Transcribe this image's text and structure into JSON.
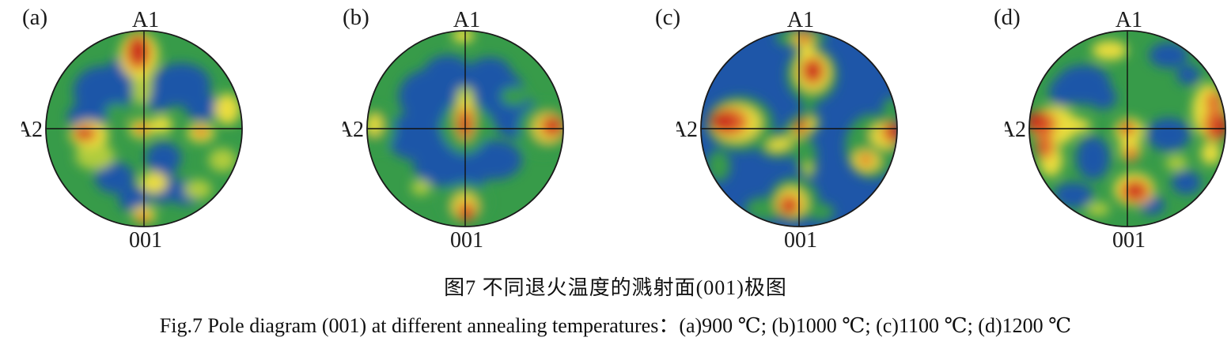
{
  "figure": {
    "caption_zh": "图7  不同退火温度的溅射面(001)极图",
    "caption_en": "Fig.7  Pole diagram (001) at different annealing temperatures：(a)900 ℃; (b)1000 ℃; (c)1100 ℃; (d)1200 ℃",
    "axis_labels": {
      "top": "A1",
      "left": "A2",
      "bottom": "001"
    },
    "colors": {
      "blue": "#1e56a8",
      "green": "#379b49",
      "yellowgreen": "#b0cc3c",
      "yellow": "#eadd3d",
      "orange": "#e0662a",
      "red": "#c92d1c"
    },
    "panels": [
      {
        "letter": "(a)",
        "temperature": "900 ℃",
        "base": "green",
        "blobs": [
          [
            -0.42,
            -0.38,
            0.3,
            0.26,
            "blue"
          ],
          [
            -0.15,
            -0.58,
            0.22,
            0.18,
            "blue"
          ],
          [
            -0.58,
            -0.12,
            0.2,
            0.15,
            "blue"
          ],
          [
            0.38,
            -0.45,
            0.3,
            0.22,
            "blue"
          ],
          [
            0.15,
            -0.32,
            0.16,
            0.14,
            "blue"
          ],
          [
            0.6,
            -0.22,
            0.18,
            0.14,
            "blue"
          ],
          [
            0.2,
            0.3,
            0.18,
            0.16,
            "blue"
          ],
          [
            0.18,
            0.55,
            0.14,
            0.22,
            "blue"
          ],
          [
            0.42,
            0.65,
            0.18,
            0.13,
            "blue"
          ],
          [
            -0.3,
            0.5,
            0.2,
            0.16,
            "blue"
          ],
          [
            -0.1,
            0.72,
            0.16,
            0.13,
            "blue"
          ],
          [
            -0.28,
            -0.17,
            0.12,
            0.09,
            "green"
          ],
          [
            -0.5,
            0.28,
            0.2,
            0.14,
            "yellowgreen"
          ],
          [
            0.8,
            0.32,
            0.14,
            0.12,
            "yellowgreen"
          ],
          [
            0.55,
            0.62,
            0.14,
            0.1,
            "yellowgreen"
          ],
          [
            -0.02,
            -0.45,
            0.1,
            0.22,
            "yellowgreen"
          ],
          [
            -0.05,
            -0.75,
            0.2,
            0.24,
            "yellow"
          ],
          [
            -0.56,
            0.06,
            0.2,
            0.14,
            "yellow"
          ],
          [
            0.18,
            -0.04,
            0.11,
            0.09,
            "yellow"
          ],
          [
            0.85,
            -0.2,
            0.13,
            0.16,
            "yellow"
          ],
          [
            0.58,
            0.04,
            0.14,
            0.1,
            "yellow"
          ],
          [
            0.1,
            0.55,
            0.14,
            0.11,
            "yellow"
          ],
          [
            -0.02,
            0.0,
            0.13,
            0.1,
            "yellow"
          ],
          [
            0.0,
            0.88,
            0.12,
            0.09,
            "yellow"
          ],
          [
            -0.06,
            -0.78,
            0.13,
            0.18,
            "orange"
          ],
          [
            -0.6,
            0.05,
            0.12,
            0.08,
            "orange"
          ],
          [
            0.58,
            0.03,
            0.07,
            0.05,
            "orange"
          ],
          [
            -0.02,
            0.0,
            0.07,
            0.05,
            "orange"
          ],
          [
            -0.01,
            0.91,
            0.07,
            0.05,
            "orange"
          ],
          [
            -0.06,
            -0.8,
            0.09,
            0.13,
            "red"
          ],
          [
            -0.62,
            0.05,
            0.07,
            0.05,
            "red"
          ],
          [
            -0.02,
            0.0,
            0.045,
            0.04,
            "red"
          ]
        ]
      },
      {
        "letter": "(b)",
        "temperature": "1000 ℃",
        "base": "green",
        "blobs": [
          [
            -0.35,
            -0.33,
            0.33,
            0.28,
            "blue"
          ],
          [
            0.3,
            -0.38,
            0.3,
            0.24,
            "blue"
          ],
          [
            -0.18,
            -0.57,
            0.24,
            0.18,
            "blue"
          ],
          [
            0.25,
            -0.57,
            0.22,
            0.16,
            "blue"
          ],
          [
            0.52,
            -0.12,
            0.24,
            0.22,
            "blue"
          ],
          [
            -0.52,
            0.08,
            0.28,
            0.24,
            "blue"
          ],
          [
            -0.25,
            0.35,
            0.28,
            0.24,
            "blue"
          ],
          [
            0.3,
            0.32,
            0.28,
            0.2,
            "blue"
          ],
          [
            0.0,
            0.48,
            0.22,
            0.16,
            "blue"
          ],
          [
            -0.05,
            -0.3,
            0.18,
            0.15,
            "blue"
          ],
          [
            0.5,
            -0.33,
            0.14,
            0.1,
            "green"
          ],
          [
            0.0,
            -0.02,
            0.24,
            0.28,
            "green"
          ],
          [
            0.8,
            0.0,
            0.26,
            0.26,
            "green"
          ],
          [
            0.0,
            0.75,
            0.24,
            0.2,
            "green"
          ],
          [
            -0.87,
            0.0,
            0.16,
            0.22,
            "green"
          ],
          [
            0.0,
            -0.33,
            0.09,
            0.1,
            "yellowgreen"
          ],
          [
            -0.45,
            0.6,
            0.1,
            0.08,
            "yellowgreen"
          ],
          [
            0.0,
            -0.1,
            0.1,
            0.22,
            "yellow"
          ],
          [
            0.85,
            -0.01,
            0.16,
            0.15,
            "yellow"
          ],
          [
            -0.93,
            -0.04,
            0.08,
            0.11,
            "yellow"
          ],
          [
            0.0,
            0.8,
            0.13,
            0.14,
            "yellow"
          ],
          [
            -0.02,
            -0.95,
            0.11,
            0.07,
            "yellow"
          ],
          [
            0.0,
            -0.06,
            0.075,
            0.16,
            "orange"
          ],
          [
            0.88,
            -0.02,
            0.12,
            0.11,
            "orange"
          ],
          [
            0.01,
            0.84,
            0.085,
            0.1,
            "orange"
          ],
          [
            -0.01,
            -0.03,
            0.05,
            0.09,
            "red"
          ],
          [
            0.9,
            -0.04,
            0.08,
            0.07,
            "red"
          ],
          [
            0.02,
            0.88,
            0.055,
            0.07,
            "red"
          ]
        ]
      },
      {
        "letter": "(c)",
        "temperature": "1100 ℃",
        "base": "blue",
        "blobs": [
          [
            0.02,
            -0.93,
            0.26,
            0.1,
            "green"
          ],
          [
            0.13,
            -0.55,
            0.26,
            0.28,
            "green"
          ],
          [
            -0.6,
            -0.05,
            0.34,
            0.28,
            "green"
          ],
          [
            0.75,
            0.18,
            0.28,
            0.33,
            "green"
          ],
          [
            0.95,
            -0.18,
            0.1,
            0.14,
            "green"
          ],
          [
            -0.05,
            0.72,
            0.25,
            0.22,
            "green"
          ],
          [
            -0.35,
            0.82,
            0.2,
            0.12,
            "green"
          ],
          [
            0.22,
            0.85,
            0.14,
            0.09,
            "green"
          ],
          [
            -0.82,
            0.38,
            0.12,
            0.16,
            "green"
          ],
          [
            0.07,
            0.28,
            0.11,
            0.18,
            "green"
          ],
          [
            -0.2,
            0.17,
            0.22,
            0.13,
            "green"
          ],
          [
            0.03,
            -0.02,
            0.2,
            0.13,
            "green",
            -30
          ],
          [
            0.1,
            -0.28,
            0.08,
            0.1,
            "green"
          ],
          [
            0.1,
            0.42,
            0.07,
            0.07,
            "yellowgreen"
          ],
          [
            0.08,
            -0.75,
            0.09,
            0.14,
            "yellow"
          ],
          [
            0.14,
            -0.58,
            0.18,
            0.2,
            "yellow"
          ],
          [
            -0.65,
            -0.06,
            0.26,
            0.19,
            "yellow"
          ],
          [
            0.05,
            -0.01,
            0.15,
            0.07,
            "yellow",
            -35
          ],
          [
            -0.2,
            0.16,
            0.13,
            0.06,
            "yellow",
            -15
          ],
          [
            0.68,
            0.33,
            0.14,
            0.11,
            "yellow"
          ],
          [
            0.88,
            0.07,
            0.15,
            0.13,
            "yellow"
          ],
          [
            -0.08,
            0.76,
            0.16,
            0.16,
            "yellow"
          ],
          [
            0.04,
            -0.91,
            0.11,
            0.08,
            "yellow"
          ],
          [
            0.14,
            -0.59,
            0.12,
            0.14,
            "orange"
          ],
          [
            -0.71,
            -0.07,
            0.19,
            0.14,
            "orange"
          ],
          [
            0.03,
            -0.03,
            0.08,
            0.05,
            "orange",
            -35
          ],
          [
            0.68,
            0.32,
            0.07,
            0.06,
            "orange"
          ],
          [
            0.94,
            0.04,
            0.1,
            0.1,
            "orange"
          ],
          [
            -0.1,
            0.78,
            0.11,
            0.11,
            "orange"
          ],
          [
            0.05,
            -0.92,
            0.07,
            0.06,
            "orange"
          ],
          [
            0.14,
            -0.59,
            0.075,
            0.095,
            "red"
          ],
          [
            -0.78,
            -0.08,
            0.13,
            0.095,
            "red"
          ],
          [
            0.01,
            -0.01,
            0.05,
            0.07,
            "red"
          ],
          [
            0.98,
            0.03,
            0.065,
            0.08,
            "red"
          ],
          [
            -0.1,
            0.8,
            0.06,
            0.07,
            "red"
          ]
        ]
      },
      {
        "letter": "(d)",
        "temperature": "1200 ℃",
        "base": "green",
        "blobs": [
          [
            -0.45,
            -0.45,
            0.28,
            0.2,
            "blue"
          ],
          [
            -0.66,
            -0.38,
            0.14,
            0.14,
            "blue"
          ],
          [
            -0.25,
            -0.32,
            0.14,
            0.12,
            "blue"
          ],
          [
            0.42,
            -0.75,
            0.2,
            0.13,
            "blue"
          ],
          [
            0.62,
            -0.55,
            0.12,
            0.1,
            "blue"
          ],
          [
            0.42,
            0.06,
            0.22,
            0.17,
            "blue"
          ],
          [
            -0.35,
            0.3,
            0.17,
            0.22,
            "blue"
          ],
          [
            -0.55,
            0.68,
            0.2,
            0.13,
            "blue"
          ],
          [
            0.6,
            0.55,
            0.15,
            0.12,
            "blue"
          ],
          [
            0.25,
            0.78,
            0.13,
            0.1,
            "blue"
          ],
          [
            -0.3,
            0.82,
            0.12,
            0.07,
            "yellowgreen"
          ],
          [
            0.5,
            0.35,
            0.11,
            0.08,
            "yellowgreen"
          ],
          [
            -0.18,
            -0.8,
            0.18,
            0.1,
            "yellow"
          ],
          [
            -0.55,
            -0.03,
            0.18,
            0.08,
            "yellow"
          ],
          [
            -0.75,
            -0.03,
            0.24,
            0.2,
            "yellow"
          ],
          [
            -0.78,
            0.32,
            0.12,
            0.17,
            "yellow"
          ],
          [
            0.83,
            -0.18,
            0.17,
            0.28,
            "yellow"
          ],
          [
            0.02,
            0.02,
            0.15,
            0.13,
            "yellow"
          ],
          [
            0.03,
            0.2,
            0.11,
            0.14,
            "yellow"
          ],
          [
            0.07,
            0.62,
            0.21,
            0.17,
            "yellow"
          ],
          [
            0.85,
            0.25,
            0.1,
            0.12,
            "yellow"
          ],
          [
            -0.87,
            -0.05,
            0.15,
            0.13,
            "orange"
          ],
          [
            -0.84,
            0.18,
            0.09,
            0.13,
            "orange"
          ],
          [
            0.9,
            -0.04,
            0.12,
            0.17,
            "orange"
          ],
          [
            0.88,
            -0.28,
            0.08,
            0.1,
            "orange"
          ],
          [
            0.0,
            0.0,
            0.08,
            0.07,
            "orange"
          ],
          [
            0.04,
            0.26,
            0.06,
            0.08,
            "orange"
          ],
          [
            0.08,
            0.64,
            0.15,
            0.12,
            "orange"
          ],
          [
            -0.93,
            -0.08,
            0.1,
            0.09,
            "red"
          ],
          [
            0.95,
            -0.02,
            0.075,
            0.09,
            "red"
          ],
          [
            -0.01,
            -0.01,
            0.05,
            0.045,
            "red"
          ],
          [
            0.08,
            0.63,
            0.08,
            0.07,
            "red"
          ]
        ]
      }
    ]
  }
}
